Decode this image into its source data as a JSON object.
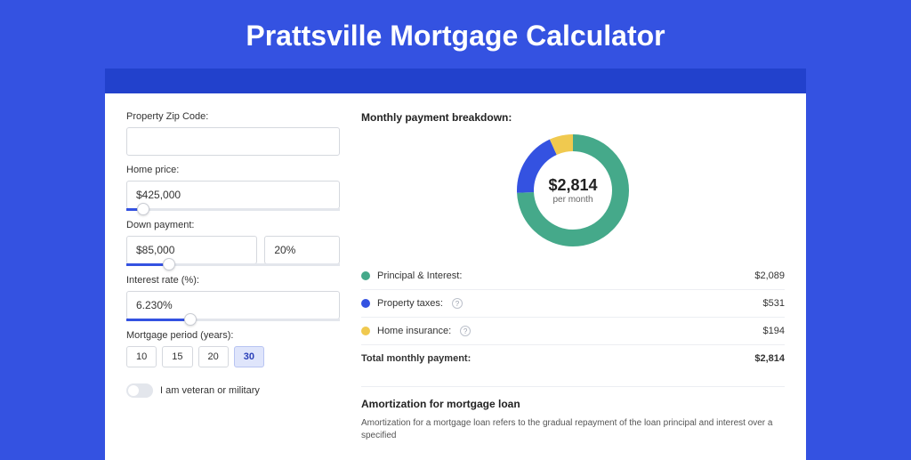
{
  "title": "Prattsville Mortgage Calculator",
  "colors": {
    "page_bg": "#3452e1",
    "banner": "#2241cc",
    "card_bg": "#ffffff",
    "border": "#d5d8de",
    "slider_fill": "#3452e1",
    "active_pill_bg": "#dfe5fb"
  },
  "form": {
    "zip": {
      "label": "Property Zip Code:",
      "value": ""
    },
    "home_price": {
      "label": "Home price:",
      "value": "$425,000",
      "slider_pct": 8
    },
    "down_payment": {
      "label": "Down payment:",
      "amount": "$85,000",
      "percent": "20%",
      "slider_pct": 20
    },
    "interest": {
      "label": "Interest rate (%):",
      "value": "6.230%",
      "slider_pct": 30
    },
    "period": {
      "label": "Mortgage period (years):",
      "options": [
        "10",
        "15",
        "20",
        "30"
      ],
      "active_index": 3
    },
    "veteran": {
      "label": "I am veteran or military",
      "checked": false
    }
  },
  "breakdown": {
    "title": "Monthly payment breakdown:",
    "donut": {
      "amount": "$2,814",
      "sub": "per month",
      "size": 126,
      "stroke": 19,
      "slices": [
        {
          "key": "principal_interest",
          "color": "#45a98a",
          "fraction": 0.742
        },
        {
          "key": "property_taxes",
          "color": "#3452e1",
          "fraction": 0.189
        },
        {
          "key": "home_insurance",
          "color": "#f0c94f",
          "fraction": 0.069
        }
      ]
    },
    "rows": [
      {
        "label": "Principal & Interest:",
        "color": "#45a98a",
        "value": "$2,089",
        "info": false
      },
      {
        "label": "Property taxes:",
        "color": "#3452e1",
        "value": "$531",
        "info": true
      },
      {
        "label": "Home insurance:",
        "color": "#f0c94f",
        "value": "$194",
        "info": true
      }
    ],
    "total": {
      "label": "Total monthly payment:",
      "value": "$2,814"
    }
  },
  "amortization": {
    "title": "Amortization for mortgage loan",
    "text": "Amortization for a mortgage loan refers to the gradual repayment of the loan principal and interest over a specified"
  }
}
